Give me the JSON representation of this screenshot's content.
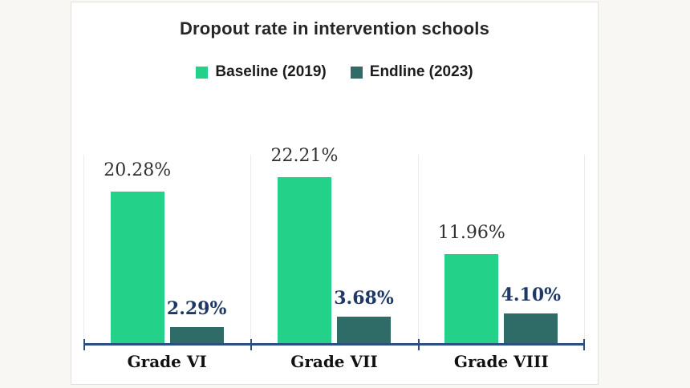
{
  "chart_data": {
    "type": "bar",
    "title": "Dropout rate in intervention schools",
    "categories": [
      "Grade VI",
      "Grade VII",
      "Grade VIII"
    ],
    "series": [
      {
        "name": "Baseline (2019)",
        "values": [
          20.28,
          22.21,
          11.96
        ],
        "data_labels": [
          "20.28%",
          "22.21%",
          "11.96%"
        ],
        "color": "#24d189",
        "label_color": "#303030"
      },
      {
        "name": "Endline (2023)",
        "values": [
          2.29,
          3.68,
          4.1
        ],
        "data_labels": [
          "2.29%",
          "3.68%",
          "4.10%"
        ],
        "color": "#2f6c67",
        "label_color": "#1f3864"
      }
    ],
    "xlabel": "",
    "ylabel": "",
    "ylim": [
      0,
      25
    ],
    "grid": "vertical-category-separators-only",
    "legend_position": "top-center",
    "axis_color": "#2d4e84",
    "gridline_color": "#edebe3"
  }
}
